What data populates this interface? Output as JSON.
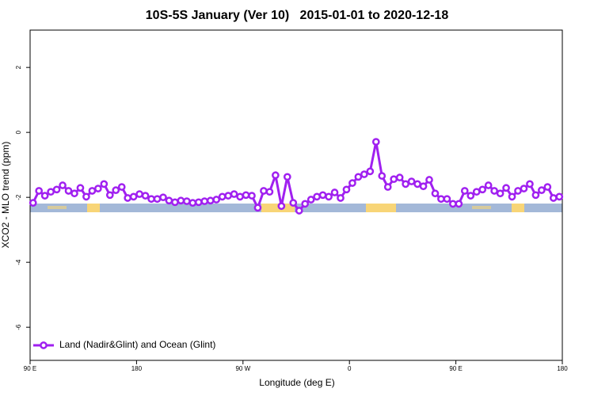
{
  "chart_data": {
    "type": "line",
    "title": "10S-5S January (Ver 10)   2015-01-01 to 2020-12-18",
    "x_label": "Longitude (deg E)",
    "y_label": "XCO2 - MLO trend (ppm)",
    "x": [
      92.5,
      97.5,
      102.5,
      107.5,
      112.5,
      117.5,
      122.5,
      127.5,
      132.5,
      137.5,
      142.5,
      147.5,
      152.5,
      157.5,
      162.5,
      167.5,
      172.5,
      177.5,
      182.5,
      187.5,
      192.5,
      197.5,
      202.5,
      207.5,
      212.5,
      217.5,
      222.5,
      227.5,
      232.5,
      237.5,
      242.5,
      247.5,
      252.5,
      257.5,
      262.5,
      267.5,
      272.5,
      277.5,
      282.5,
      287.5,
      292.5,
      297.5,
      302.5,
      307.5,
      312.5,
      317.5,
      322.5,
      327.5,
      332.5,
      337.5,
      342.5,
      347.5,
      352.5,
      357.5,
      362.5,
      367.5,
      372.5,
      377.5,
      382.5,
      387.5,
      392.5,
      397.5,
      402.5,
      407.5,
      412.5,
      417.5,
      422.5,
      427.5,
      432.5,
      437.5,
      442.5,
      447.5,
      452.5,
      457.5,
      462.5,
      467.5,
      472.5,
      477.5,
      482.5,
      487.5,
      492.5,
      497.5,
      502.5,
      507.5,
      512.5,
      517.5,
      522.5,
      527.5,
      532.5,
      537.5
    ],
    "series": [
      {
        "name": "Land (Nadir&Glint) and Ocean (Glint)",
        "color": "#a020f0",
        "values": [
          -2.17,
          -1.8,
          -1.95,
          -1.83,
          -1.76,
          -1.63,
          -1.8,
          -1.88,
          -1.71,
          -1.98,
          -1.8,
          -1.73,
          -1.59,
          -1.93,
          -1.78,
          -1.68,
          -2.02,
          -1.98,
          -1.9,
          -1.95,
          -2.05,
          -2.05,
          -2.0,
          -2.1,
          -2.15,
          -2.1,
          -2.12,
          -2.17,
          -2.15,
          -2.12,
          -2.1,
          -2.07,
          -1.98,
          -1.95,
          -1.9,
          -1.98,
          -1.93,
          -1.95,
          -2.32,
          -1.8,
          -1.83,
          -1.32,
          -2.27,
          -1.37,
          -2.17,
          -2.41,
          -2.2,
          -2.07,
          -1.98,
          -1.93,
          -1.98,
          -1.85,
          -2.02,
          -1.76,
          -1.56,
          -1.37,
          -1.29,
          -1.2,
          -0.29,
          -1.34,
          -1.68,
          -1.44,
          -1.39,
          -1.59,
          -1.51,
          -1.59,
          -1.66,
          -1.46,
          -1.88,
          -2.05,
          -2.05,
          -2.2,
          -2.2,
          -1.8,
          -1.95,
          -1.83,
          -1.76,
          -1.63,
          -1.8,
          -1.88,
          -1.71,
          -1.98,
          -1.8,
          -1.73,
          -1.59,
          -1.93,
          -1.78,
          -1.68,
          -2.02,
          -1.98
        ]
      }
    ],
    "xlim": [
      90,
      540
    ],
    "xticks": [
      {
        "value": 90,
        "label": "90 E"
      },
      180,
      {
        "value": 270,
        "label": "90 W"
      },
      {
        "value": 360,
        "label": "0"
      },
      {
        "value": 450,
        "label": "90 E"
      },
      {
        "value": 540,
        "label": "180"
      }
    ],
    "ylim": [
      -7.02,
      3.15
    ],
    "yticks": [
      -6,
      -4,
      -2,
      0,
      2
    ],
    "legend": "bottom-left"
  }
}
